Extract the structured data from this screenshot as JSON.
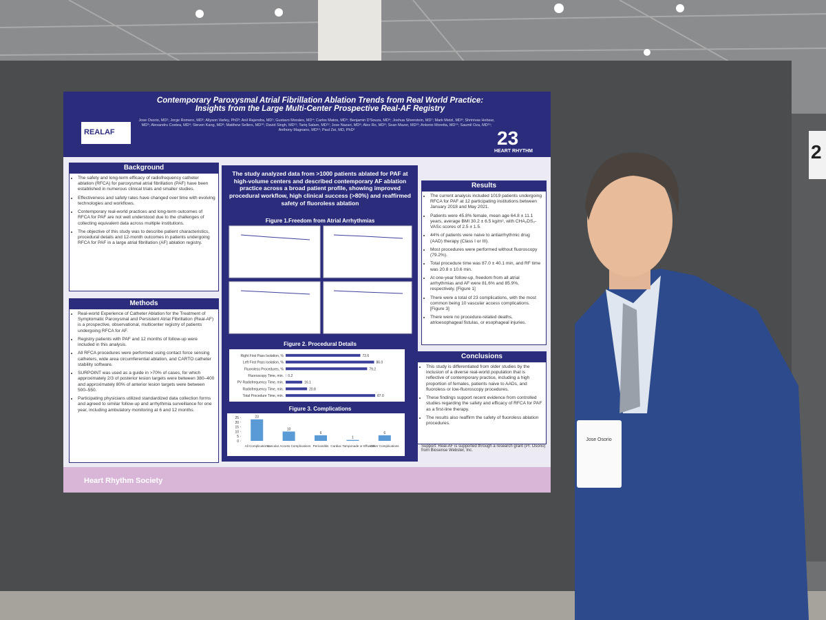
{
  "poster": {
    "title": "Contemporary Paroxysmal Atrial Fibrillation Ablation Trends from Real World Practice: Insights from the Large Multi-Center Prospective Real-AF Registry",
    "authors": "Jose Osorio, MD¹; Jorge Romero, MD²; Allyson Varley, PhD³; Anil Rajendra, MD¹; Gustavo Morales, MD⁴; Carlos Matos, MD⁵; Benjamin D'Souza, MD⁶; Joshua Silverstein, MD⁷; Mark Metzl, MD⁸; Shrinivas Hebsur, MD⁹; Alexandru Costea, MD⁹; Steven Kang, MD⁸; Matthew Sellers, MD¹⁰; David Singh, MD¹¹; Tariq Salam, MD¹²; Jose Nazari, MD⁸; Alex Ro, MD⁸; Sean Mazer, MD¹³; Antonio Moretta, MD¹⁴; Saumil Oza, MD¹⁵; Anthony Magnano, MD¹⁶; Paul Zei, MD, PhD²",
    "logo_left": "REALAF",
    "logo_right": "HEART RHYTHM",
    "logo_year": "23",
    "background": {
      "heading": "Background",
      "bullets": [
        "The safety and long-term efficacy of radiofrequency catheter ablation (RFCA) for paroxysmal atrial fibrillation (PAF) have been established in numerous clinical trials and smaller studies.",
        "Effectiveness and safety rates have changed over time with evolving technologies and workflows.",
        "Contemporary real-world practices and long-term outcomes of RFCA for PAF are not well understood due to the challenges of collecting equivalent data across multiple institutions.",
        "The objective of this study was to describe patient characteristics, procedural details and 12-month outcomes in patients undergoing RFCA for PAF in a large atrial fibrillation (AF) ablation registry."
      ]
    },
    "methods": {
      "heading": "Methods",
      "bullets": [
        "Real-world Experience of Catheter Ablation for the Treatment of Symptomatic Paroxysmal and Persistent Atrial Fibrillation (Real-AF) is a prospective, observational, multicenter registry of patients undergoing RFCA for AF.",
        "Registry patients with PAF and 12 months of follow-up were included in this analysis.",
        "All RFCA procedures were performed using contact force sensing catheters, wide area circumferential ablation, and CARTO catheter stability software.",
        "SURPOINT was used as a guide in >70% of cases, for which approximately 2/3 of posterior lesion targets were between 380–400 and approximately 80% of anterior lesion targets were between 500–550.",
        "Participating physicians utilized standardized data collection forms and agreed to similar follow-up and arrhythmia surveillance for one year, including ambulatory monitoring at 6 and 12 months."
      ]
    },
    "statement": "The study analyzed data from >1000 patients ablated for PAF at high-volume centers and described contemporary AF ablation practice across a broad patient profile, showing improved procedural workflow, high clinical success (>80%) and reaffirmed safety of fluoroless ablation",
    "figure1": {
      "title": "Figure 1.Freedom from Atrial Arrhythmias"
    },
    "figure2": {
      "title": "Figure 2. Procedural Details",
      "categories": [
        "Right First Pass Isolation, %",
        "Left First Pass Isolation, %",
        "Fluoroless Procedures, %",
        "Fluoroscopy Time, min.",
        "PV Radiofrequency Time, min.",
        "Radiofrequency Time, min.",
        "Total Procedure Time, min."
      ],
      "values": [
        72.6,
        86.0,
        79.2,
        0.2,
        16.1,
        20.8,
        87.0
      ],
      "value_labels": [
        "72.6",
        "86.0",
        "79.2",
        "0.2",
        "16.1",
        "20.8",
        "87.0"
      ],
      "color": "#3a3f9a"
    },
    "figure3": {
      "title": "Figure 3. Complications",
      "categories": [
        "All Complications",
        "Vascular Access Complications",
        "Pericarditis",
        "Cardiac Tamponade or Effusion",
        "Other Complications"
      ],
      "values": [
        23,
        10,
        6,
        1,
        6
      ],
      "color": "#5b9bd5",
      "ylim": [
        0,
        25
      ],
      "yticks": [
        0,
        5,
        10,
        15,
        20,
        25
      ]
    },
    "results": {
      "heading": "Results",
      "bullets": [
        "The current analysis included 1019 patients undergoing RFCA for PAF at 12 participating institutions between January 2018 and May 2021.",
        "Patients were 45.8% female, mean age 64.8 ± 11.1 years, average BMI 30.2 ± 6.5 kg/m², with CHA₂DS₂-VASc scores of 2.5 ± 1.5.",
        "44% of patients were naive to antiarrhythmic drug (AAD) therapy (Class I or III).",
        "Most procedures were performed without fluoroscopy (79.2%).",
        "Total procedure time was 87.0 ± 40.1 min, and RF time was 20.8 ± 10.6 min.",
        "At one-year follow-up, freedom from all atrial arrhythmias and AF were 81.6% and 85.9%, respectively. [Figure 1]",
        "There were a total of 23 complications, with the most common being 10 vascular access complications. [Figure 3]",
        "There were no procedure-related deaths, atrioesophageal fistulas, or esophageal injuries."
      ]
    },
    "conclusions": {
      "heading": "Conclusions",
      "bullets": [
        "This study is differentiated from older studies by the inclusion of a diverse real-world population that is reflective of contemporary practice, including a high proportion of females, patients naive to AADs, and fluoroless or low-fluoroscopy procedures.",
        "These findings support recent evidence from controlled studies regarding the safety and efficacy of RFCA for PAF as a first-line therapy.",
        "The results also reaffirm the safety of fluoroless ablation procedures."
      ]
    },
    "support": "Support: Real-AF is supported through a research grant (PI: Osorio) from Biosense Webster, Inc.",
    "footer": "Heart Rhythm Society"
  },
  "badge": {
    "name": "Jose Osorio"
  },
  "board_number": "2"
}
